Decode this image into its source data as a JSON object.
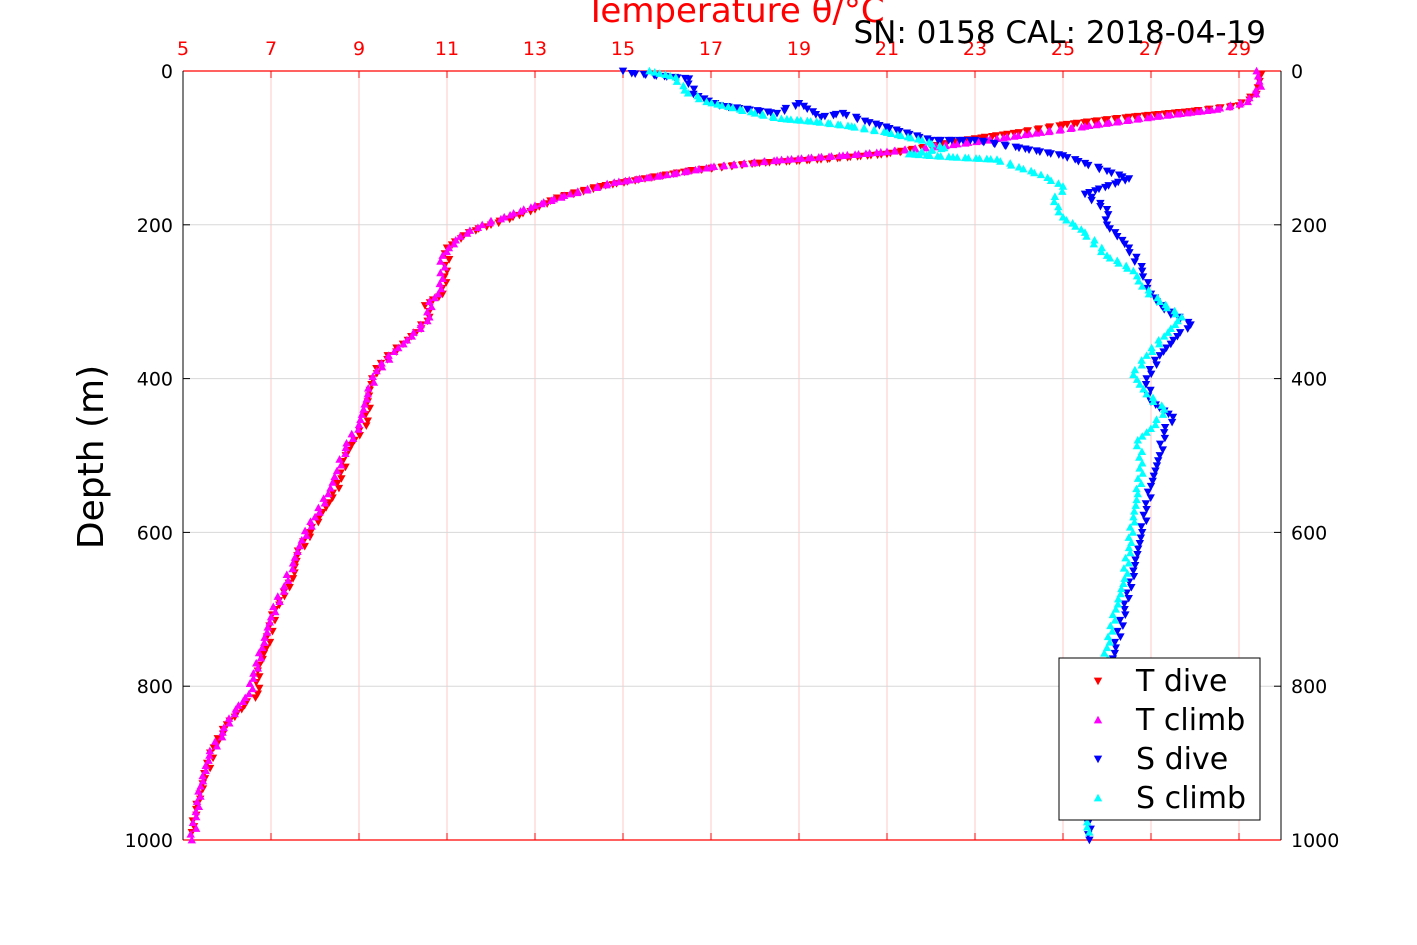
{
  "colors": {
    "t_dive": "#ff0000",
    "t_climb": "#ff00ff",
    "s_dive": "#0000ff",
    "s_climb": "#00ffff",
    "top_axis": "#ff0000",
    "grid_v": "#ffc8c8",
    "grid_h": "#d8d8d8"
  },
  "header": {
    "title": "Temperature θ/°C",
    "sn_cal": "SN: 0158  CAL: 2018-04-19"
  },
  "chart_data": {
    "type": "scatter",
    "title": "Temperature θ/°C",
    "xlabel": "Temperature θ/°C",
    "ylabel": "Depth (m)",
    "xlim": [
      5,
      30
    ],
    "ylim": [
      0,
      1000
    ],
    "y_reversed": true,
    "x_ticks": [
      5,
      7,
      9,
      11,
      13,
      15,
      17,
      19,
      21,
      23,
      25,
      27,
      29
    ],
    "y_ticks": [
      0,
      200,
      400,
      600,
      800,
      1000
    ],
    "grid": true,
    "legend_position": "bottom-right",
    "legend": [
      "T dive",
      "T climb",
      "S dive",
      "S climb"
    ],
    "series": [
      {
        "name": "T dive",
        "color": "#ff0000",
        "marker": "triangle-down",
        "points": [
          [
            29.5,
            5
          ],
          [
            29.4,
            30
          ],
          [
            29.0,
            45
          ],
          [
            28.0,
            52
          ],
          [
            26.5,
            60
          ],
          [
            25.0,
            70
          ],
          [
            24.0,
            80
          ],
          [
            23.0,
            88
          ],
          [
            22.0,
            98
          ],
          [
            21.0,
            108
          ],
          [
            19.5,
            115
          ],
          [
            18.0,
            120
          ],
          [
            16.5,
            130
          ],
          [
            15.5,
            140
          ],
          [
            14.5,
            150
          ],
          [
            13.5,
            165
          ],
          [
            13.0,
            180
          ],
          [
            12.5,
            190
          ],
          [
            12.0,
            200
          ],
          [
            11.5,
            210
          ],
          [
            11.0,
            230
          ],
          [
            11.0,
            260
          ],
          [
            10.9,
            290
          ],
          [
            10.5,
            305
          ],
          [
            10.6,
            320
          ],
          [
            10.3,
            340
          ],
          [
            10.0,
            355
          ],
          [
            9.5,
            380
          ],
          [
            9.3,
            400
          ],
          [
            9.2,
            430
          ],
          [
            9.2,
            455
          ],
          [
            8.9,
            480
          ],
          [
            8.7,
            500
          ],
          [
            8.6,
            530
          ],
          [
            8.4,
            555
          ],
          [
            8.1,
            580
          ],
          [
            7.9,
            600
          ],
          [
            7.6,
            630
          ],
          [
            7.5,
            660
          ],
          [
            7.1,
            700
          ],
          [
            6.9,
            750
          ],
          [
            6.7,
            780
          ],
          [
            6.7,
            810
          ],
          [
            6.4,
            825
          ],
          [
            6.0,
            850
          ],
          [
            5.7,
            880
          ],
          [
            5.5,
            920
          ],
          [
            5.3,
            960
          ],
          [
            5.2,
            990
          ]
        ]
      },
      {
        "name": "T climb",
        "color": "#ff00ff",
        "marker": "triangle-up",
        "points": [
          [
            29.4,
            0
          ],
          [
            29.5,
            20
          ],
          [
            29.2,
            40
          ],
          [
            28.5,
            50
          ],
          [
            27.0,
            60
          ],
          [
            25.5,
            72
          ],
          [
            24.5,
            80
          ],
          [
            23.5,
            88
          ],
          [
            22.5,
            96
          ],
          [
            21.0,
            105
          ],
          [
            20.0,
            110
          ],
          [
            18.5,
            116
          ],
          [
            17.0,
            125
          ],
          [
            16.0,
            135
          ],
          [
            14.8,
            145
          ],
          [
            13.8,
            160
          ],
          [
            13.0,
            175
          ],
          [
            12.3,
            190
          ],
          [
            11.8,
            200
          ],
          [
            11.3,
            215
          ],
          [
            10.9,
            240
          ],
          [
            10.9,
            270
          ],
          [
            10.8,
            290
          ],
          [
            10.6,
            300
          ],
          [
            10.6,
            320
          ],
          [
            10.2,
            345
          ],
          [
            9.8,
            365
          ],
          [
            9.4,
            390
          ],
          [
            9.2,
            420
          ],
          [
            9.0,
            460
          ],
          [
            8.7,
            490
          ],
          [
            8.5,
            520
          ],
          [
            8.3,
            550
          ],
          [
            8.0,
            580
          ],
          [
            7.7,
            610
          ],
          [
            7.5,
            640
          ],
          [
            7.3,
            670
          ],
          [
            7.0,
            710
          ],
          [
            6.8,
            750
          ],
          [
            6.6,
            790
          ],
          [
            6.5,
            810
          ],
          [
            6.2,
            830
          ],
          [
            5.9,
            860
          ],
          [
            5.6,
            890
          ],
          [
            5.4,
            930
          ],
          [
            5.3,
            970
          ],
          [
            5.2,
            1000
          ]
        ]
      },
      {
        "name": "S dive",
        "color": "#0000ff",
        "marker": "triangle-down",
        "points": [
          [
            15.0,
            0
          ],
          [
            15.2,
            3
          ],
          [
            16.5,
            10
          ],
          [
            16.6,
            30
          ],
          [
            17.2,
            45
          ],
          [
            18.5,
            55
          ],
          [
            19.0,
            42
          ],
          [
            19.5,
            60
          ],
          [
            20.0,
            55
          ],
          [
            20.5,
            65
          ],
          [
            22.0,
            90
          ],
          [
            23.0,
            90
          ],
          [
            24.0,
            100
          ],
          [
            25.0,
            110
          ],
          [
            25.5,
            120
          ],
          [
            26.0,
            130
          ],
          [
            26.5,
            140
          ],
          [
            25.5,
            160
          ],
          [
            26.0,
            180
          ],
          [
            26.0,
            200
          ],
          [
            26.5,
            230
          ],
          [
            26.8,
            260
          ],
          [
            27.0,
            290
          ],
          [
            27.3,
            310
          ],
          [
            27.9,
            330
          ],
          [
            27.6,
            345
          ],
          [
            27.2,
            370
          ],
          [
            26.9,
            400
          ],
          [
            27.0,
            430
          ],
          [
            27.5,
            450
          ],
          [
            27.3,
            470
          ],
          [
            27.2,
            500
          ],
          [
            27.0,
            540
          ],
          [
            26.9,
            570
          ],
          [
            26.8,
            600
          ],
          [
            26.6,
            650
          ],
          [
            26.4,
            700
          ],
          [
            26.2,
            750
          ],
          [
            26.0,
            800
          ],
          [
            25.8,
            850
          ],
          [
            25.7,
            900
          ],
          [
            25.6,
            950
          ],
          [
            25.6,
            1000
          ]
        ]
      },
      {
        "name": "S climb",
        "color": "#00ffff",
        "marker": "triangle-up",
        "points": [
          [
            15.6,
            0
          ],
          [
            16.2,
            8
          ],
          [
            16.4,
            25
          ],
          [
            16.9,
            40
          ],
          [
            17.5,
            48
          ],
          [
            18.0,
            55
          ],
          [
            18.6,
            62
          ],
          [
            19.4,
            66
          ],
          [
            20.2,
            72
          ],
          [
            21.0,
            80
          ],
          [
            21.8,
            90
          ],
          [
            22.3,
            100
          ],
          [
            21.5,
            108
          ],
          [
            22.5,
            112
          ],
          [
            23.5,
            115
          ],
          [
            24.0,
            125
          ],
          [
            24.5,
            135
          ],
          [
            25.0,
            150
          ],
          [
            24.8,
            170
          ],
          [
            25.0,
            190
          ],
          [
            25.5,
            210
          ],
          [
            26.0,
            240
          ],
          [
            26.6,
            260
          ],
          [
            26.8,
            280
          ],
          [
            27.2,
            300
          ],
          [
            27.7,
            320
          ],
          [
            27.3,
            345
          ],
          [
            26.9,
            370
          ],
          [
            26.6,
            395
          ],
          [
            26.9,
            420
          ],
          [
            27.3,
            440
          ],
          [
            27.1,
            460
          ],
          [
            26.7,
            480
          ],
          [
            26.8,
            510
          ],
          [
            26.7,
            550
          ],
          [
            26.6,
            580
          ],
          [
            26.5,
            620
          ],
          [
            26.4,
            660
          ],
          [
            26.2,
            700
          ],
          [
            26.0,
            750
          ],
          [
            25.9,
            800
          ],
          [
            25.7,
            860
          ],
          [
            25.6,
            920
          ],
          [
            25.5,
            970
          ],
          [
            25.6,
            990
          ]
        ]
      }
    ]
  }
}
